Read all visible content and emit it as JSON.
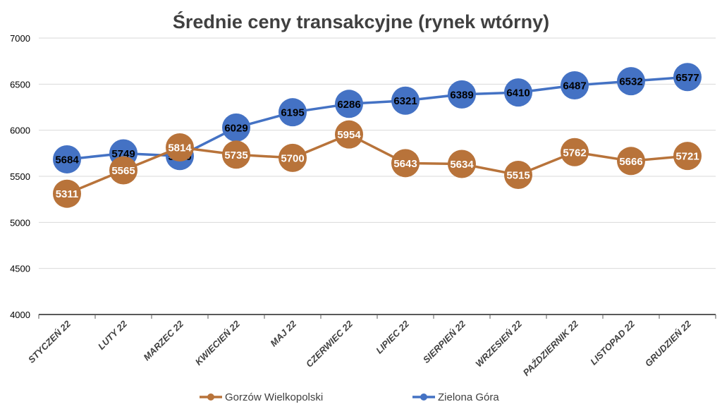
{
  "chart_data": {
    "type": "line",
    "title": "Średnie ceny transakcyjne (rynek wtórny)",
    "xlabel": "",
    "ylabel": "",
    "ylim": [
      4000,
      7000
    ],
    "yticks": [
      4000,
      4500,
      5000,
      5500,
      6000,
      6500,
      7000
    ],
    "grid": true,
    "legend_position": "bottom",
    "categories": [
      "STYCZEŃ 22",
      "LUTY 22",
      "MARZEC 22",
      "KWIECIEŃ 22",
      "MAJ 22",
      "CZERWIEC 22",
      "LIPIEC 22",
      "SIERPIEŃ 22",
      "WRZESIEŃ 22",
      "PAŹDZIERNIK 22",
      "LISTOPAD 22",
      "GRUDZIEŃ 22"
    ],
    "series": [
      {
        "name": "Gorzów Wielkopolski",
        "color": "#B8733A",
        "label_color": "#FFFFFF",
        "values": [
          5311,
          5565,
          5814,
          5735,
          5700,
          5954,
          5643,
          5634,
          5515,
          5762,
          5666,
          5721
        ]
      },
      {
        "name": "Zielona Góra",
        "color": "#4472C4",
        "label_color": "#000000",
        "values": [
          5684,
          5749,
          5720,
          6029,
          6195,
          6286,
          6321,
          6389,
          6410,
          6487,
          6532,
          6577
        ]
      }
    ]
  }
}
